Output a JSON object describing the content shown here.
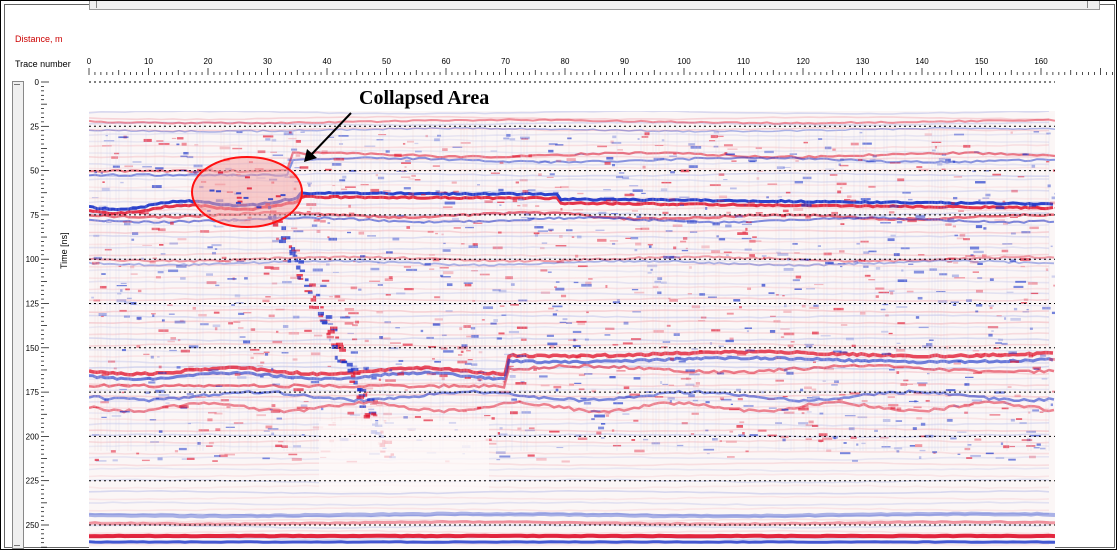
{
  "distance_label": "Distance, m",
  "trace_label": "Trace number",
  "x_ticks": [
    "0",
    "10",
    "20",
    "30",
    "40",
    "50",
    "60",
    "70",
    "80",
    "90",
    "100",
    "110",
    "120",
    "130",
    "140",
    "150",
    "160"
  ],
  "y_axis_label": "Time [ns]",
  "y_ticks": [
    "0",
    "25",
    "50",
    "75",
    "100",
    "125",
    "150",
    "175",
    "200",
    "225",
    "250"
  ],
  "annotation": "Collapsed Area",
  "colors": {
    "positive_reflection": "#e0102a",
    "negative_reflection": "#1530c8",
    "ellipse_fill": "#f4a8a8",
    "ellipse_stroke": "#ff1010",
    "distance_label": "#cc0000"
  }
}
